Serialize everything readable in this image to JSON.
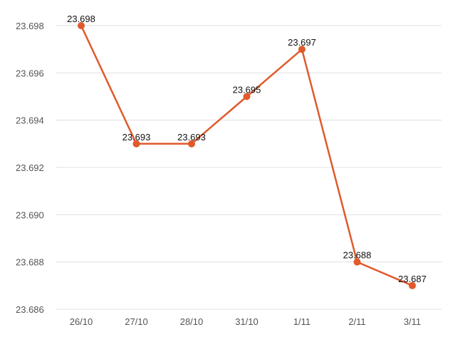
{
  "chart_data": {
    "type": "line",
    "title": "",
    "xlabel": "",
    "ylabel": "",
    "categories": [
      "26/10",
      "27/10",
      "28/10",
      "31/10",
      "1/11",
      "2/11",
      "3/11"
    ],
    "series": [
      {
        "values": [
          23.698,
          23.693,
          23.693,
          23.695,
          23.697,
          23.688,
          23.687
        ],
        "labels": [
          "23.698",
          "23.693",
          "23.693",
          "23.695",
          "23.697",
          "23.688",
          "23.687"
        ]
      }
    ],
    "y_ticks": [
      "23.686",
      "23.688",
      "23.690",
      "23.692",
      "23.694",
      "23.696",
      "23.698"
    ],
    "ylim": [
      23.686,
      23.698
    ],
    "grid": true,
    "legend": "none",
    "colors": {
      "line": "#e05a2b",
      "grid": "#e0e0e0",
      "text": "#555555"
    }
  }
}
